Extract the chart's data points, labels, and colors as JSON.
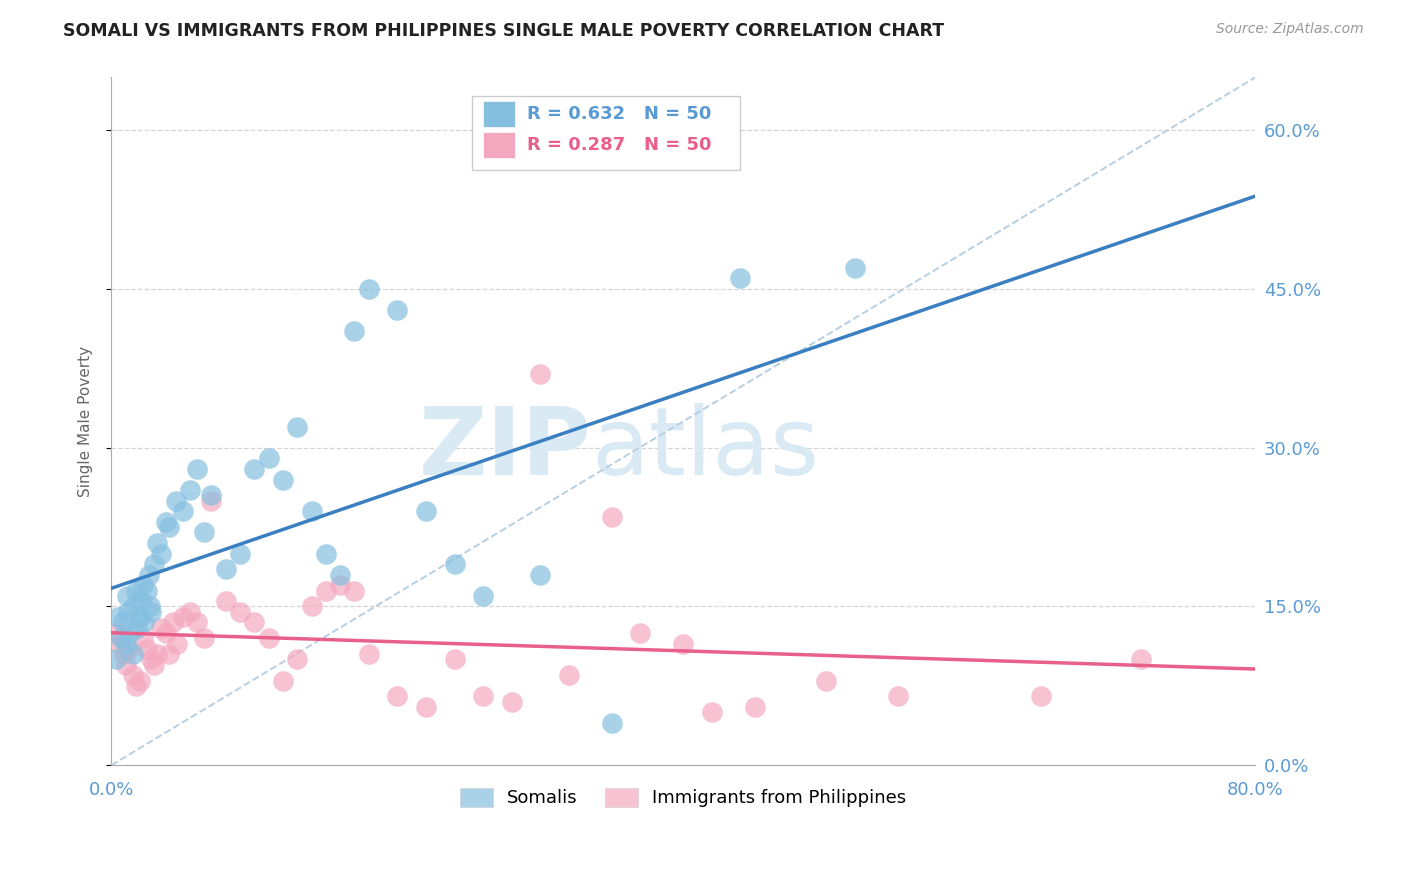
{
  "title": "SOMALI VS IMMIGRANTS FROM PHILIPPINES SINGLE MALE POVERTY CORRELATION CHART",
  "source": "Source: ZipAtlas.com",
  "ylabel": "Single Male Poverty",
  "right_ytick_vals": [
    0.0,
    15.0,
    30.0,
    45.0,
    60.0
  ],
  "xlim": [
    0.0,
    80.0
  ],
  "ylim": [
    0.0,
    65.0
  ],
  "somali_R": 0.632,
  "somali_N": 50,
  "philippines_R": 0.287,
  "philippines_N": 50,
  "somali_color": "#85bfe0",
  "philippines_color": "#f4a8bf",
  "somali_line_color": "#3a7fc1",
  "philippines_line_color": "#e8608a",
  "diagonal_color": "#b8cfe0",
  "watermark_zip": "ZIP",
  "watermark_atlas": "atlas",
  "somali_x": [
    0.3,
    0.5,
    0.7,
    0.8,
    1.0,
    1.1,
    1.2,
    1.3,
    1.5,
    1.6,
    1.7,
    1.8,
    2.0,
    2.1,
    2.2,
    2.3,
    2.5,
    2.6,
    2.7,
    2.8,
    3.0,
    3.2,
    3.5,
    3.8,
    4.0,
    4.5,
    5.0,
    5.5,
    6.0,
    6.5,
    7.0,
    8.0,
    9.0,
    10.0,
    11.0,
    12.0,
    13.0,
    14.0,
    15.0,
    16.0,
    17.0,
    18.0,
    20.0,
    22.0,
    24.0,
    26.0,
    30.0,
    35.0,
    44.0,
    52.0
  ],
  "somali_y": [
    10.0,
    14.0,
    12.0,
    13.5,
    11.5,
    16.0,
    14.5,
    12.5,
    10.5,
    15.0,
    16.5,
    13.0,
    14.0,
    15.5,
    17.0,
    13.5,
    16.5,
    18.0,
    15.0,
    14.5,
    19.0,
    21.0,
    20.0,
    23.0,
    22.5,
    25.0,
    24.0,
    26.0,
    28.0,
    22.0,
    25.5,
    18.5,
    20.0,
    28.0,
    29.0,
    27.0,
    32.0,
    24.0,
    20.0,
    18.0,
    41.0,
    45.0,
    43.0,
    24.0,
    19.0,
    16.0,
    18.0,
    4.0,
    46.0,
    47.0
  ],
  "philippines_x": [
    0.3,
    0.6,
    0.9,
    1.0,
    1.2,
    1.5,
    1.7,
    2.0,
    2.2,
    2.5,
    2.8,
    3.0,
    3.2,
    3.5,
    3.8,
    4.0,
    4.3,
    4.6,
    5.0,
    5.5,
    6.0,
    6.5,
    7.0,
    8.0,
    9.0,
    10.0,
    11.0,
    12.0,
    13.0,
    14.0,
    15.0,
    16.0,
    17.0,
    18.0,
    20.0,
    22.0,
    24.0,
    26.0,
    28.0,
    30.0,
    32.0,
    35.0,
    37.0,
    40.0,
    42.0,
    45.0,
    50.0,
    55.0,
    65.0,
    72.0
  ],
  "philippines_y": [
    12.5,
    11.5,
    10.5,
    9.5,
    11.0,
    8.5,
    7.5,
    8.0,
    12.0,
    11.0,
    10.0,
    9.5,
    10.5,
    13.0,
    12.5,
    10.5,
    13.5,
    11.5,
    14.0,
    14.5,
    13.5,
    12.0,
    25.0,
    15.5,
    14.5,
    13.5,
    12.0,
    8.0,
    10.0,
    15.0,
    16.5,
    17.0,
    16.5,
    10.5,
    6.5,
    5.5,
    10.0,
    6.5,
    6.0,
    37.0,
    8.5,
    23.5,
    12.5,
    11.5,
    5.0,
    5.5,
    8.0,
    6.5,
    6.5,
    10.0
  ]
}
